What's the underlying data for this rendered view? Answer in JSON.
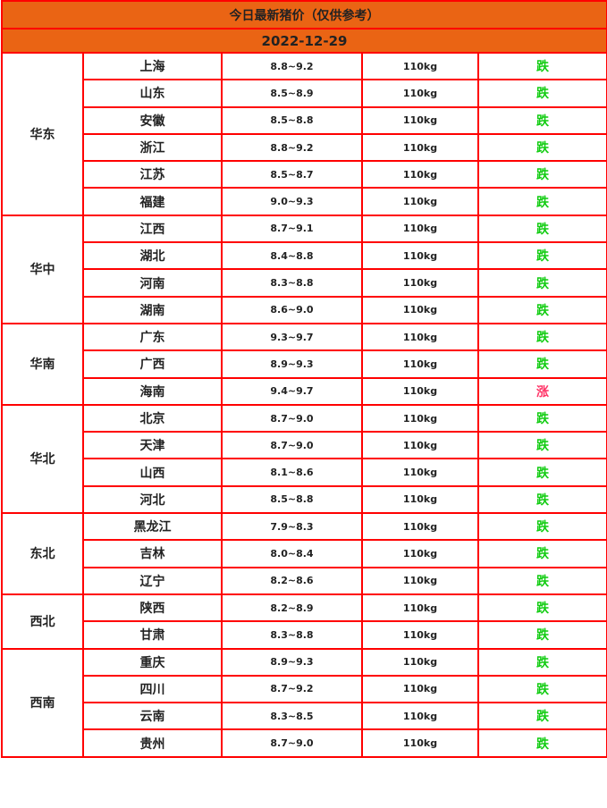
{
  "title": "今日最新猪价（仅供参考）",
  "date": "2022-12-29",
  "colors": {
    "header_bg": "#ea6414",
    "border": "#ff0000",
    "down": "#11cc11",
    "up": "#ff3366"
  },
  "regions": [
    {
      "name": "华东",
      "rows": [
        [
          "上海",
          "8.8~9.2",
          "110kg",
          "跌"
        ],
        [
          "山东",
          "8.5~8.9",
          "110kg",
          "跌"
        ],
        [
          "安徽",
          "8.5~8.8",
          "110kg",
          "跌"
        ],
        [
          "浙江",
          "8.8~9.2",
          "110kg",
          "跌"
        ],
        [
          "江苏",
          "8.5~8.7",
          "110kg",
          "跌"
        ],
        [
          "福建",
          "9.0~9.3",
          "110kg",
          "跌"
        ]
      ]
    },
    {
      "name": "华中",
      "rows": [
        [
          "江西",
          "8.7~9.1",
          "110kg",
          "跌"
        ],
        [
          "湖北",
          "8.4~8.8",
          "110kg",
          "跌"
        ],
        [
          "河南",
          "8.3~8.8",
          "110kg",
          "跌"
        ],
        [
          "湖南",
          "8.6~9.0",
          "110kg",
          "跌"
        ]
      ]
    },
    {
      "name": "华南",
      "rows": [
        [
          "广东",
          "9.3~9.7",
          "110kg",
          "跌"
        ],
        [
          "广西",
          "8.9~9.3",
          "110kg",
          "跌"
        ],
        [
          "海南",
          "9.4~9.7",
          "110kg",
          "涨"
        ]
      ]
    },
    {
      "name": "华北",
      "rows": [
        [
          "北京",
          "8.7~9.0",
          "110kg",
          "跌"
        ],
        [
          "天津",
          "8.7~9.0",
          "110kg",
          "跌"
        ],
        [
          "山西",
          "8.1~8.6",
          "110kg",
          "跌"
        ],
        [
          "河北",
          "8.5~8.8",
          "110kg",
          "跌"
        ]
      ]
    },
    {
      "name": "东北",
      "rows": [
        [
          "黑龙江",
          "7.9~8.3",
          "110kg",
          "跌"
        ],
        [
          "吉林",
          "8.0~8.4",
          "110kg",
          "跌"
        ],
        [
          "辽宁",
          "8.2~8.6",
          "110kg",
          "跌"
        ]
      ]
    },
    {
      "name": "西北",
      "rows": [
        [
          "陕西",
          "8.2~8.9",
          "110kg",
          "跌"
        ],
        [
          "甘肃",
          "8.3~8.8",
          "110kg",
          "跌"
        ]
      ]
    },
    {
      "name": "西南",
      "rows": [
        [
          "重庆",
          "8.9~9.3",
          "110kg",
          "跌"
        ],
        [
          "四川",
          "8.7~9.2",
          "110kg",
          "跌"
        ],
        [
          "云南",
          "8.3~8.5",
          "110kg",
          "跌"
        ],
        [
          "贵州",
          "8.7~9.0",
          "110kg",
          "跌"
        ]
      ]
    }
  ]
}
